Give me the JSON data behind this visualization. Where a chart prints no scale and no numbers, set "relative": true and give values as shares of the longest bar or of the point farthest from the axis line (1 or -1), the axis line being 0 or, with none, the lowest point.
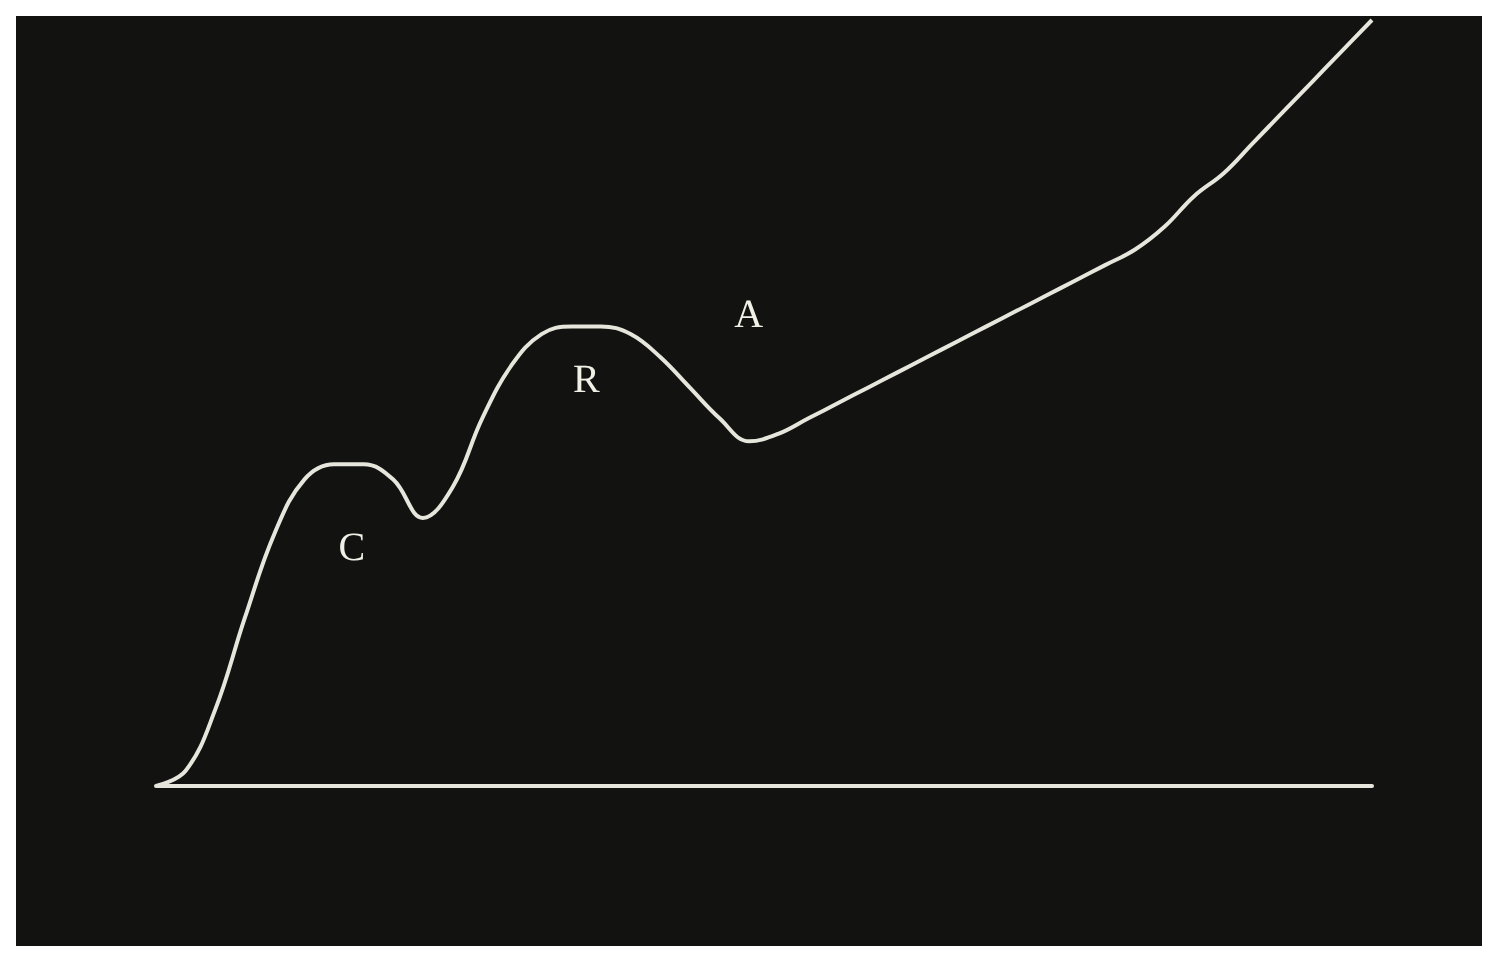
{
  "chart_data": {
    "type": "line",
    "relative": true,
    "color": "#e6e6dc",
    "marker": "none",
    "grid": false,
    "categories": [
      null,
      null,
      null,
      null,
      null,
      null,
      null,
      null,
      null,
      null,
      null,
      null,
      null,
      null,
      null,
      null,
      null,
      null,
      null,
      null,
      null,
      null,
      null,
      null,
      null,
      null,
      null,
      null,
      null,
      null,
      null,
      null,
      null,
      null,
      null,
      null,
      null,
      null,
      null,
      null,
      null,
      null
    ],
    "values": [
      0,
      0.02,
      0.1,
      0.22,
      0.33,
      0.4,
      0.42,
      0.42,
      0.4,
      0.35,
      0.39,
      0.48,
      0.55,
      0.59,
      0.6,
      0.6,
      0.59,
      0.56,
      0.52,
      0.48,
      0.45,
      0.46,
      0.48,
      0.5,
      0.52,
      0.54,
      0.56,
      0.58,
      0.6,
      0.62,
      0.64,
      0.66,
      0.68,
      0.7,
      0.73,
      0.77,
      0.8,
      0.84,
      0.88,
      0.92,
      0.96,
      1
    ],
    "annotations": [
      "C",
      "R",
      "A"
    ]
  }
}
